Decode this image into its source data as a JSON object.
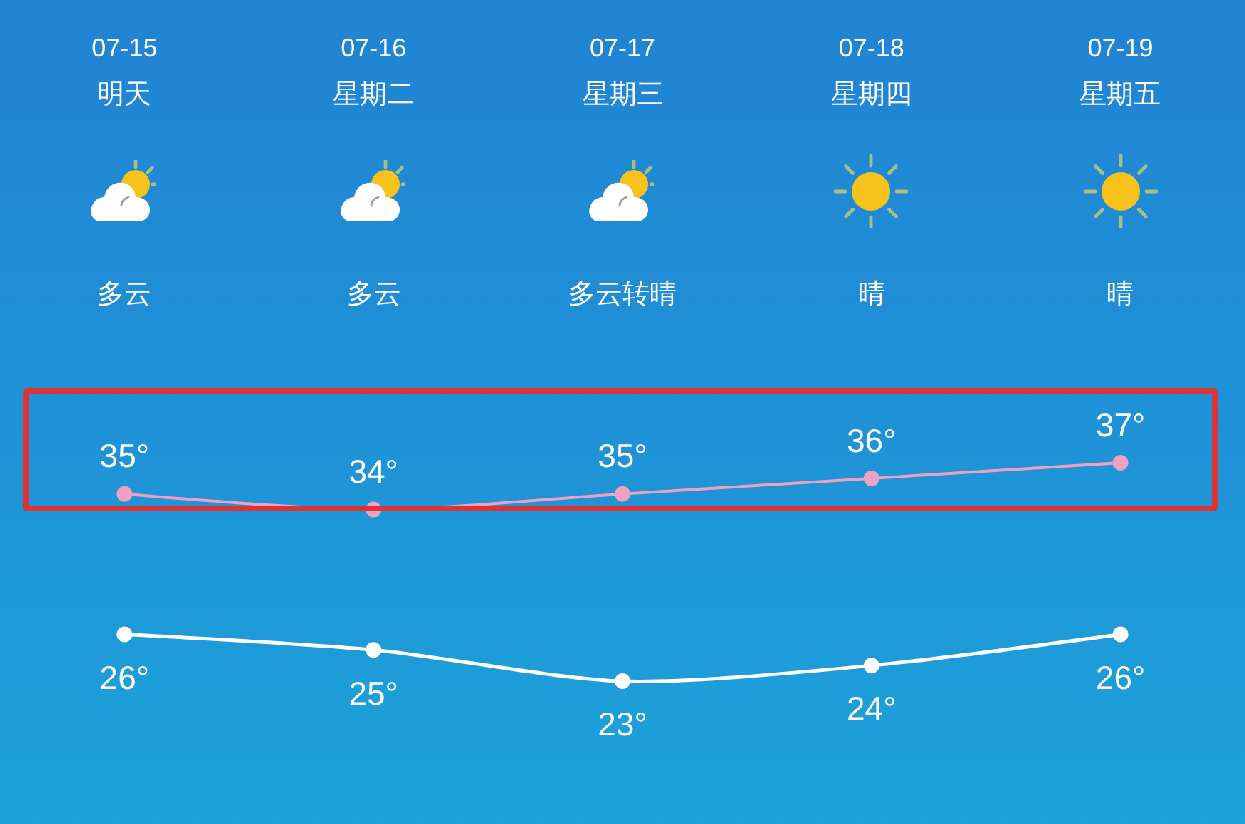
{
  "chart_data": {
    "type": "line",
    "categories": [
      "07-15",
      "07-16",
      "07-17",
      "07-18",
      "07-19"
    ],
    "series": [
      {
        "color": "#f0a0c0",
        "values": [
          35,
          34,
          35,
          36,
          37
        ],
        "value_labels": [
          "35°",
          "34°",
          "35°",
          "36°",
          "37°"
        ]
      },
      {
        "color": "#ffffff",
        "values": [
          26,
          25,
          23,
          24,
          26
        ],
        "value_labels": [
          "26°",
          "25°",
          "23°",
          "24°",
          "26°"
        ]
      }
    ],
    "marker": "circle",
    "tick_labels": "x",
    "annotations": [
      "明天",
      "星期二",
      "星期三",
      "星期四",
      "星期五",
      "多云",
      "多云",
      "多云转晴",
      "晴",
      "晴"
    ]
  }
}
